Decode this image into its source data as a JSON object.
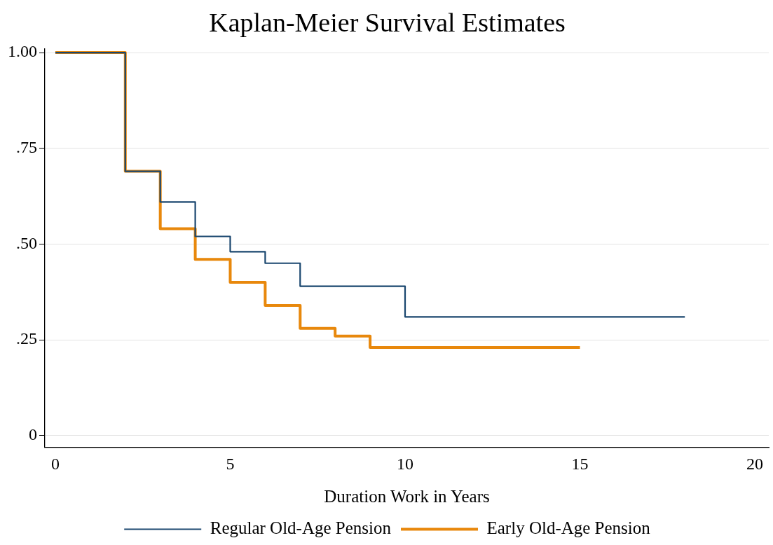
{
  "chart_data": {
    "type": "step",
    "title": "Kaplan-Meier Survival Estimates",
    "xlabel": "Duration Work in Years",
    "series": [
      {
        "name": "Regular Old-Age Pension",
        "color": "#1a476f",
        "x": [
          0,
          2,
          3,
          4,
          5,
          6,
          7,
          10,
          18
        ],
        "values": [
          1.0,
          0.69,
          0.61,
          0.52,
          0.48,
          0.45,
          0.39,
          0.31,
          0.31
        ]
      },
      {
        "name": "Early Old-Age Pension",
        "color": "#e8880c",
        "x": [
          0,
          2,
          3,
          4,
          5,
          6,
          7,
          8,
          9,
          15
        ],
        "values": [
          1.0,
          0.69,
          0.54,
          0.46,
          0.4,
          0.34,
          0.28,
          0.26,
          0.23,
          0.23
        ]
      }
    ],
    "xlim": [
      -0.3,
      20.4
    ],
    "xticks": [
      0,
      5,
      10,
      15,
      20
    ],
    "ylim": [
      -0.03,
      1.01
    ],
    "yticks": [
      {
        "value": 0,
        "label": "0"
      },
      {
        "value": 0.25,
        "label": ".25"
      },
      {
        "value": 0.5,
        "label": ".50"
      },
      {
        "value": 0.75,
        "label": ".75"
      },
      {
        "value": 1,
        "label": "1.00"
      }
    ],
    "grid": "y",
    "legend": "bottom",
    "line_style": "solid",
    "marker": "none"
  }
}
